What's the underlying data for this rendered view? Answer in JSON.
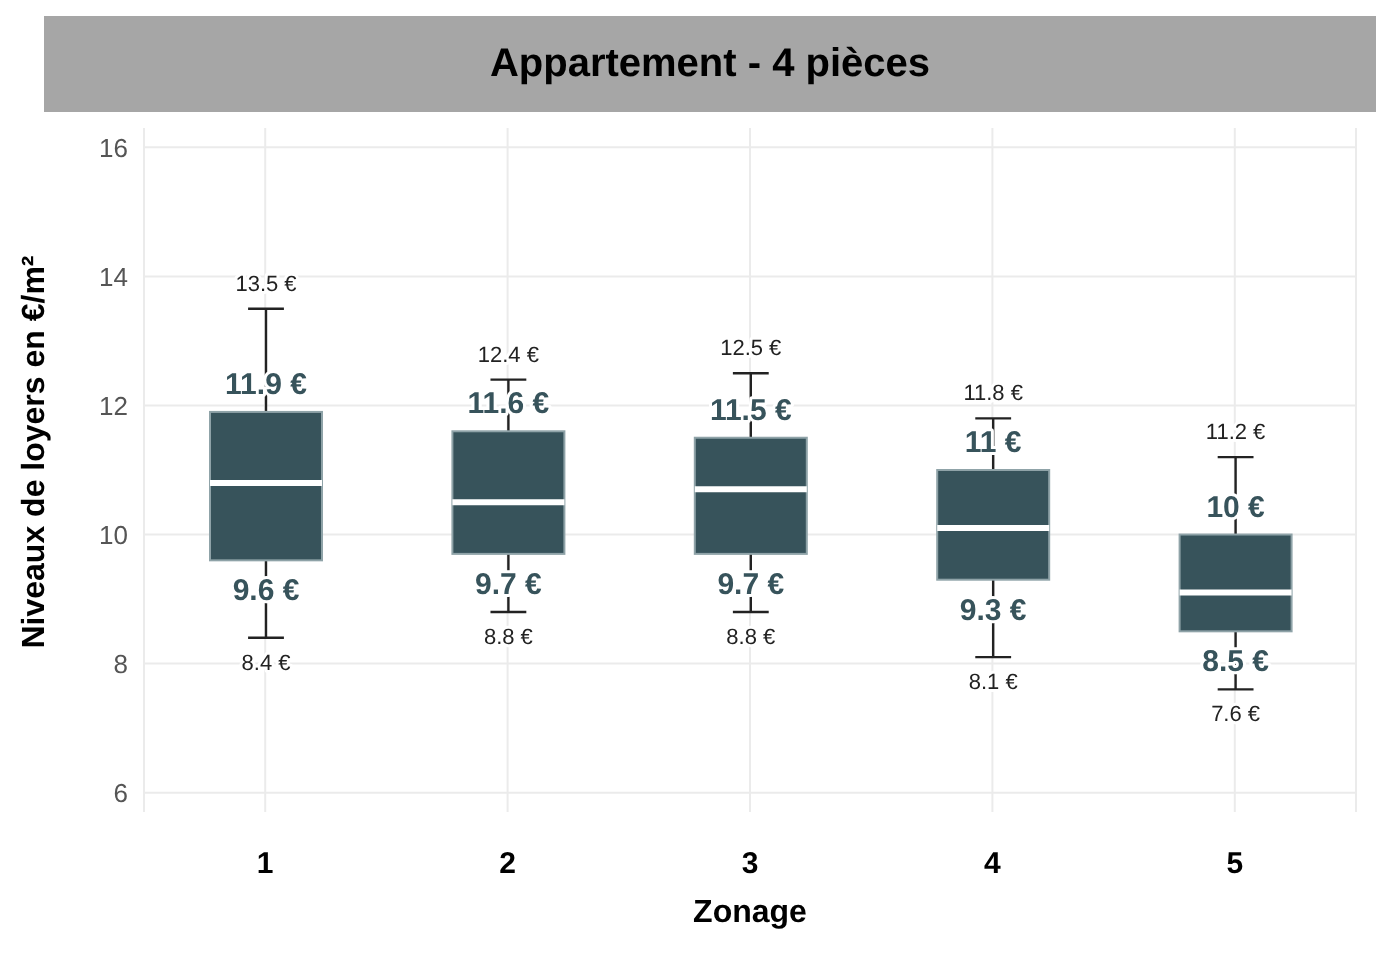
{
  "chart_data": {
    "type": "box",
    "title": "Appartement - 4 pièces",
    "xlabel": "Zonage",
    "ylabel": "Niveaux de loyers en €/m²",
    "categories": [
      "1",
      "2",
      "3",
      "4",
      "5"
    ],
    "color": "#37535b",
    "boxes": [
      {
        "low": 8.4,
        "q1": 9.6,
        "median": 10.8,
        "q3": 11.9,
        "high": 13.5
      },
      {
        "low": 8.8,
        "q1": 9.7,
        "median": 10.5,
        "q3": 11.6,
        "high": 12.4
      },
      {
        "low": 8.8,
        "q1": 9.7,
        "median": 10.7,
        "q3": 11.5,
        "high": 12.5
      },
      {
        "low": 8.1,
        "q1": 9.3,
        "median": 10.1,
        "q3": 11,
        "high": 11.8
      },
      {
        "low": 7.6,
        "q1": 8.5,
        "median": 9.1,
        "q3": 10,
        "high": 11.2
      }
    ],
    "ylim": [
      5.7,
      16.3
    ],
    "yticks": [
      6,
      8,
      10,
      12,
      14,
      16
    ],
    "grid": true,
    "annotations": [
      {
        "text": "13.5 €",
        "x": "1",
        "y": 13.5
      },
      {
        "text": "11.9 €",
        "x": "1",
        "y": 11.9
      },
      {
        "text": "9.6 €",
        "x": "1",
        "y": 9.6
      },
      {
        "text": "8.4 €",
        "x": "1",
        "y": 8.4
      },
      {
        "text": "12.4 €",
        "x": "2",
        "y": 12.4
      },
      {
        "text": "11.6 €",
        "x": "2",
        "y": 11.6
      },
      {
        "text": "9.7 €",
        "x": "2",
        "y": 9.7
      },
      {
        "text": "8.8 €",
        "x": "2",
        "y": 8.8
      },
      {
        "text": "12.5 €",
        "x": "3",
        "y": 12.5
      },
      {
        "text": "11.5 €",
        "x": "3",
        "y": 11.5
      },
      {
        "text": "9.7 €",
        "x": "3",
        "y": 9.7
      },
      {
        "text": "8.8 €",
        "x": "3",
        "y": 8.8
      },
      {
        "text": "11.8 €",
        "x": "4",
        "y": 11.8
      },
      {
        "text": "11 €",
        "x": "4",
        "y": 11
      },
      {
        "text": "9.3 €",
        "x": "4",
        "y": 9.3
      },
      {
        "text": "8.1 €",
        "x": "4",
        "y": 8.1
      },
      {
        "text": "11.2 €",
        "x": "5",
        "y": 11.2
      },
      {
        "text": "10 €",
        "x": "5",
        "y": 10
      },
      {
        "text": "8.5 €",
        "x": "5",
        "y": 8.5
      },
      {
        "text": "7.6 €",
        "x": "5",
        "y": 7.6
      }
    ]
  }
}
